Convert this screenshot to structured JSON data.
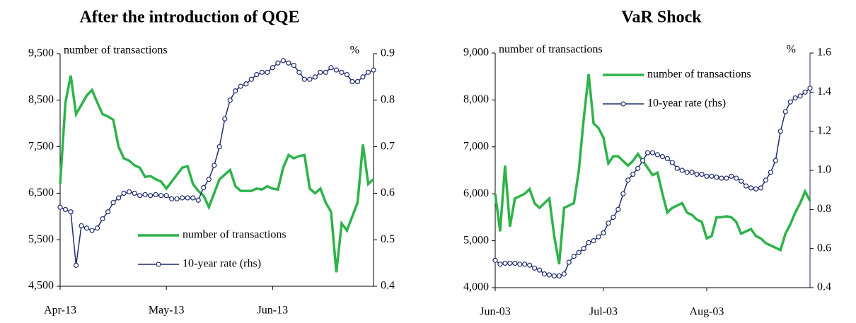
{
  "chart_data": [
    {
      "type": "line",
      "title": "After the introduction of QQE",
      "y_label": "number of transactions",
      "y2_label": "%",
      "categories": [
        "Apr-13",
        null,
        null,
        null,
        null,
        null,
        null,
        null,
        null,
        null,
        null,
        null,
        null,
        null,
        null,
        null,
        null,
        null,
        null,
        null,
        "May-13",
        null,
        null,
        null,
        null,
        null,
        null,
        null,
        null,
        null,
        null,
        null,
        null,
        null,
        null,
        null,
        null,
        null,
        null,
        null,
        "Jun-13",
        null,
        null,
        null,
        null,
        null,
        null,
        null,
        null,
        null,
        null,
        null,
        null,
        null,
        null,
        null,
        null,
        null,
        null,
        null
      ],
      "series": [
        {
          "name": "number of transactions",
          "color": "#2db34a",
          "axis": "y",
          "values": [
            6700,
            8450,
            9030,
            8200,
            8400,
            8600,
            8720,
            8450,
            8200,
            8150,
            8080,
            7500,
            7250,
            7200,
            7100,
            7050,
            6850,
            6870,
            6800,
            6750,
            6600,
            6750,
            6900,
            7050,
            7080,
            6700,
            6550,
            6450,
            6200,
            6500,
            6800,
            6900,
            7000,
            6650,
            6550,
            6550,
            6550,
            6600,
            6580,
            6650,
            6600,
            6580,
            7050,
            7320,
            7250,
            7300,
            7320,
            6600,
            6500,
            6600,
            6300,
            6100,
            4800,
            5850,
            5700,
            6000,
            6300,
            7550,
            6700,
            6800
          ]
        },
        {
          "name": "10-year rate (rhs)",
          "color": "#1f2d6e",
          "axis": "y2",
          "values": [
            0.57,
            0.565,
            0.56,
            0.445,
            0.53,
            0.525,
            0.52,
            0.525,
            0.545,
            0.56,
            0.58,
            0.59,
            0.6,
            0.603,
            0.6,
            0.595,
            0.597,
            0.595,
            0.597,
            0.595,
            0.595,
            0.588,
            0.588,
            0.59,
            0.59,
            0.59,
            0.585,
            0.612,
            0.63,
            0.66,
            0.7,
            0.76,
            0.8,
            0.82,
            0.83,
            0.835,
            0.845,
            0.855,
            0.86,
            0.86,
            0.87,
            0.88,
            0.885,
            0.88,
            0.875,
            0.86,
            0.845,
            0.845,
            0.85,
            0.86,
            0.86,
            0.87,
            0.865,
            0.86,
            0.855,
            0.84,
            0.84,
            0.85,
            0.86,
            0.865
          ]
        }
      ],
      "ylim": [
        4500,
        9500
      ],
      "yticks": [
        {
          "value": 4500,
          "label": "4,500"
        },
        {
          "value": 5500,
          "label": "5,500"
        },
        {
          "value": 6500,
          "label": "6,500"
        },
        {
          "value": 7500,
          "label": "7,500"
        },
        {
          "value": 8500,
          "label": "8,500"
        },
        {
          "value": 9500,
          "label": "9,500"
        }
      ],
      "y2lim": [
        0.4,
        0.9
      ],
      "y2ticks": [
        0.4,
        0.5,
        0.6,
        0.7,
        0.8,
        0.9
      ],
      "legend": "lower center"
    },
    {
      "type": "line",
      "title": "VaR Shock",
      "y_label": "number of transactions",
      "y2_label": "%",
      "categories": [
        "Jun-03",
        null,
        null,
        null,
        null,
        null,
        null,
        null,
        null,
        null,
        null,
        null,
        null,
        null,
        null,
        null,
        null,
        null,
        null,
        null,
        null,
        null,
        "Jul-03",
        null,
        null,
        null,
        null,
        null,
        null,
        null,
        null,
        null,
        null,
        null,
        null,
        null,
        null,
        null,
        null,
        null,
        null,
        null,
        null,
        "Aug-03",
        null,
        null,
        null,
        null,
        null,
        null,
        null,
        null,
        null,
        null,
        null,
        null,
        null,
        null,
        null,
        null,
        null,
        null,
        null,
        null,
        null
      ],
      "series": [
        {
          "name": "number of transactions",
          "color": "#2db34a",
          "axis": "y",
          "values": [
            6000,
            5200,
            6600,
            5300,
            5900,
            5950,
            6000,
            6100,
            5800,
            5700,
            5800,
            5900,
            5100,
            4500,
            5700,
            5750,
            5800,
            6500,
            7600,
            8550,
            7500,
            7400,
            7200,
            6650,
            6800,
            6800,
            6700,
            6600,
            6700,
            6850,
            6700,
            6550,
            6400,
            6450,
            6000,
            5600,
            5700,
            5750,
            5800,
            5600,
            5550,
            5450,
            5400,
            5050,
            5100,
            5500,
            5500,
            5520,
            5500,
            5400,
            5150,
            5200,
            5250,
            5100,
            5050,
            4950,
            4900,
            4850,
            4800,
            5150,
            5350,
            5600,
            5800,
            6050,
            5850
          ]
        },
        {
          "name": "10-year rate (rhs)",
          "color": "#1f2d6e",
          "axis": "y2",
          "values": [
            0.54,
            0.52,
            0.525,
            0.525,
            0.525,
            0.52,
            0.52,
            0.515,
            0.5,
            0.49,
            0.47,
            0.465,
            0.46,
            0.46,
            0.47,
            0.53,
            0.56,
            0.58,
            0.6,
            0.63,
            0.64,
            0.66,
            0.68,
            0.73,
            0.76,
            0.8,
            0.88,
            0.95,
            0.98,
            1.01,
            1.05,
            1.09,
            1.09,
            1.08,
            1.07,
            1.06,
            1.04,
            1.01,
            1.0,
            0.99,
            0.99,
            0.98,
            0.98,
            0.97,
            0.97,
            0.965,
            0.96,
            0.96,
            0.97,
            0.96,
            0.945,
            0.92,
            0.91,
            0.905,
            0.91,
            0.95,
            0.99,
            1.05,
            1.2,
            1.3,
            1.35,
            1.37,
            1.38,
            1.4,
            1.42
          ]
        }
      ],
      "ylim": [
        4000,
        9000
      ],
      "yticks": [
        {
          "value": 4000,
          "label": "4,000"
        },
        {
          "value": 5000,
          "label": "5,000"
        },
        {
          "value": 6000,
          "label": "6,000"
        },
        {
          "value": 7000,
          "label": "7,000"
        },
        {
          "value": 8000,
          "label": "8,000"
        },
        {
          "value": 9000,
          "label": "9,000"
        }
      ],
      "y2lim": [
        0.4,
        1.6
      ],
      "y2ticks": [
        0.4,
        0.6,
        0.8,
        {
          "value": 1.0,
          "label": "1.0"
        },
        1.2,
        1.4,
        1.6
      ],
      "legend": "upper center"
    }
  ]
}
